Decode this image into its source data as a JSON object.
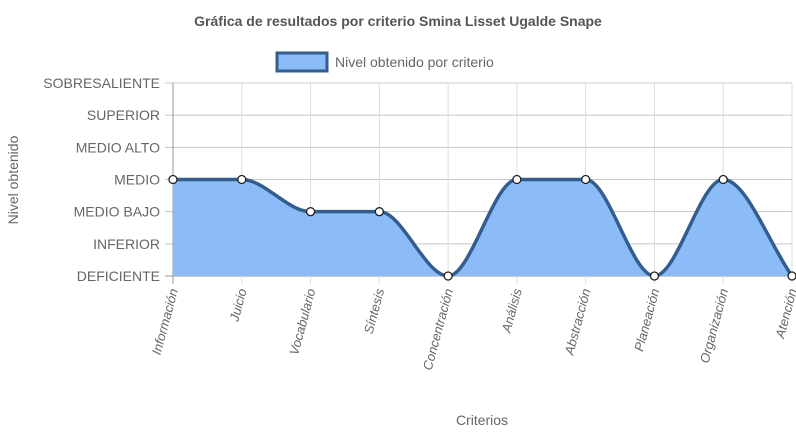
{
  "chart_data": {
    "type": "area",
    "title": "Gráfica de resultados por criterio Smina Lisset Ugalde Snape",
    "xlabel": "Criterios",
    "ylabel": "Nivel obtenido",
    "categories": [
      "Información",
      "Juicio",
      "Vocabulario",
      "Síntesis",
      "Concentración",
      "Análisis",
      "Abstracción",
      "Planeación",
      "Organización",
      "Atención"
    ],
    "y_levels": [
      "DEFICIENTE",
      "INFERIOR",
      "MEDIO BAJO",
      "MEDIO",
      "MEDIO ALTO",
      "SUPERIOR",
      "SOBRESALIENTE"
    ],
    "ylim": [
      0,
      6
    ],
    "grid": true,
    "legend_position": "top-center",
    "series": [
      {
        "name": "Nivel obtenido por criterio",
        "values": [
          3,
          3,
          2,
          2,
          0,
          3,
          3,
          0,
          3,
          0
        ],
        "fill_color": "#8bbcf7",
        "line_color": "#335c8f"
      }
    ]
  }
}
